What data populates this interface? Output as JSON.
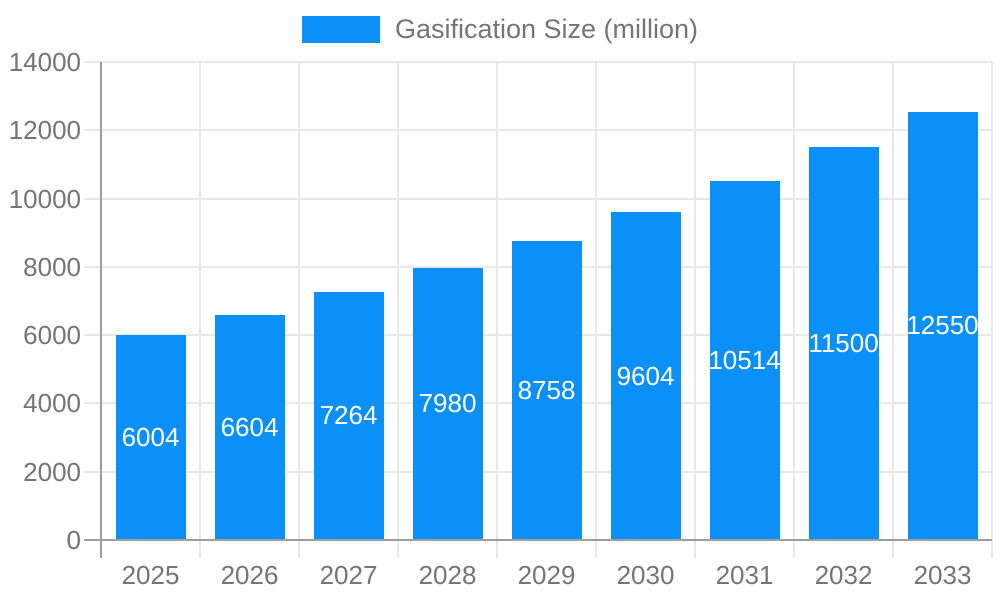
{
  "chart_data": {
    "type": "bar",
    "legend": {
      "label": "Gasification Size (million)",
      "position": "top"
    },
    "categories": [
      "2025",
      "2026",
      "2027",
      "2028",
      "2029",
      "2030",
      "2031",
      "2032",
      "2033"
    ],
    "series": [
      {
        "name": "Gasification Size (million)",
        "values": [
          6004,
          6604,
          7264,
          7980,
          8758,
          9604,
          10514,
          11500,
          12550
        ]
      }
    ],
    "bar_value_labels": [
      "6004",
      "6604",
      "7264",
      "7980",
      "8758",
      "9604",
      "10514",
      "11500",
      "12550"
    ],
    "xlabel": "",
    "ylabel": "",
    "ylim": [
      0,
      14000
    ],
    "yticks": [
      0,
      2000,
      4000,
      6000,
      8000,
      10000,
      12000,
      14000
    ],
    "grid": true,
    "legend_position": "top-center",
    "colors": {
      "bar": "#0A90F8",
      "bar_label": "#FFFFFF",
      "text": "#757575",
      "axis": "#9E9E9E",
      "grid": "#E8E8E8",
      "background": "#FFFFFF"
    }
  }
}
